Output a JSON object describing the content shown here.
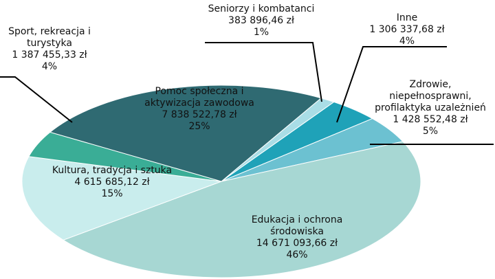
{
  "chart_data": {
    "type": "pie",
    "categories": [
      "Seniorzy i kombatanci",
      "Inne",
      "Zdrowie, niepełnosprawni, profilaktyka uzależnień",
      "Edukacja i ochrona środowiska",
      "Kultura, tradycja i sztuka",
      "Sport, rekreacja i turystyka",
      "Pomoc społeczna i aktywizacja zawodowa"
    ],
    "values": [
      383896.46,
      1306337.68,
      1428552.48,
      14671093.66,
      4615685.12,
      1387455.33,
      7838522.78
    ],
    "value_labels": [
      "383 896,46 zł",
      "1 306 337,68 zł",
      "1 428 552,48 zł",
      "14 671 093,66 zł",
      "4 615 685,12 zł",
      "1 387 455,33 zł",
      "7 838 522,78 zł"
    ],
    "percentages": [
      1,
      4,
      5,
      46,
      15,
      4,
      25
    ],
    "percentage_labels": [
      "1%",
      "4%",
      "5%",
      "46%",
      "15%",
      "4%",
      "25%"
    ],
    "colors": [
      "#a9dde6",
      "#1fa2b8",
      "#6cc1d1",
      "#a7d7d3",
      "#c9eded",
      "#3aad96",
      "#2f6a72"
    ]
  }
}
